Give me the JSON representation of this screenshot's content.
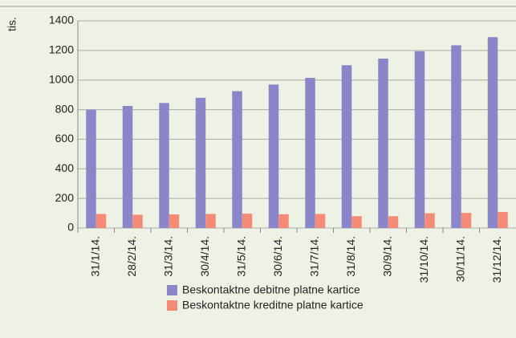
{
  "chart_data": {
    "type": "bar",
    "y_label": "tis.",
    "categories": [
      "31/1/14.",
      "28/2/14.",
      "31/3/14.",
      "30/4/14.",
      "31/5/14.",
      "30/6/14.",
      "31/7/14.",
      "31/8/14.",
      "30/9/14.",
      "31/10/14.",
      "30/11/14.",
      "31/12/14."
    ],
    "series": [
      {
        "name": "Beskontaktne debitne platne kartice",
        "color": "#8b85c9",
        "values": [
          800,
          825,
          845,
          880,
          925,
          970,
          1015,
          1100,
          1145,
          1195,
          1235,
          1290
        ]
      },
      {
        "name": "Beskontaktne kreditne platne kartice",
        "color": "#f58b76",
        "values": [
          95,
          90,
          92,
          95,
          97,
          93,
          95,
          80,
          80,
          100,
          102,
          108
        ]
      }
    ],
    "ylim": [
      0,
      1400
    ],
    "yticks": [
      0,
      200,
      400,
      600,
      800,
      1000,
      1200,
      1400
    ],
    "grid": true,
    "legend": "bottom"
  }
}
